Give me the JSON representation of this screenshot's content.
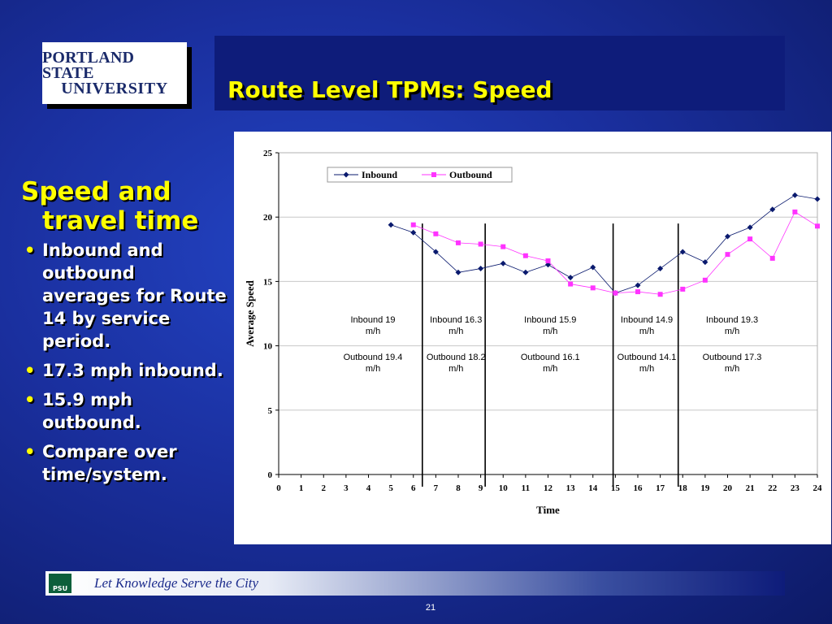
{
  "logo": {
    "line1": "PORTLAND STATE",
    "line2": "UNIVERSITY"
  },
  "title": "Route Level TPMs: Speed",
  "left": {
    "heading": "Speed and travel time",
    "bullets": [
      "Inbound and outbound averages for Route 14 by service period.",
      "17.3 mph inbound.",
      "15.9 mph outbound.",
      "Compare over time/system."
    ]
  },
  "footer": {
    "badge": "PSU",
    "tagline": "Let Knowledge Serve the City",
    "page_number": "21"
  },
  "colors": {
    "inbound": "#0a1a6e",
    "outbound": "#ff33ff",
    "title": "#ffff00"
  },
  "chart_data": {
    "type": "line",
    "xlabel": "Time",
    "ylabel": "Average Speed",
    "x_ticks": [
      0,
      1,
      2,
      3,
      4,
      5,
      6,
      7,
      8,
      9,
      10,
      11,
      12,
      13,
      14,
      15,
      16,
      17,
      18,
      19,
      20,
      21,
      22,
      23,
      24
    ],
    "y_ticks": [
      0,
      5,
      10,
      15,
      20,
      25
    ],
    "xlim": [
      0,
      24
    ],
    "ylim": [
      0,
      25
    ],
    "grid": "horizontal",
    "legend": "top-left",
    "series": [
      {
        "name": "Inbound",
        "marker": "diamond",
        "x": [
          5,
          6,
          7,
          8,
          9,
          10,
          11,
          12,
          13,
          14,
          15,
          16,
          17,
          18,
          19,
          20,
          21,
          22,
          23,
          24
        ],
        "y": [
          19.4,
          18.8,
          17.3,
          15.7,
          16.0,
          16.4,
          15.7,
          16.3,
          15.3,
          16.1,
          14.1,
          14.7,
          16.0,
          17.3,
          16.5,
          18.5,
          19.2,
          20.6,
          21.7,
          21.4
        ]
      },
      {
        "name": "Outbound",
        "marker": "square",
        "x": [
          6,
          7,
          8,
          9,
          10,
          11,
          12,
          13,
          14,
          15,
          16,
          17,
          18,
          19,
          20,
          21,
          22,
          23,
          24
        ],
        "y": [
          19.4,
          18.7,
          18.0,
          17.9,
          17.7,
          17.0,
          16.6,
          14.8,
          14.5,
          14.1,
          14.2,
          14.0,
          14.4,
          15.1,
          17.1,
          18.3,
          16.8,
          20.4,
          19.3
        ]
      }
    ],
    "period_dividers": [
      6.4,
      9.2,
      14.9,
      17.8
    ],
    "annotations": [
      {
        "x": 4.2,
        "inbound": "Inbound 19 m/h",
        "outbound": "Outbound 19.4 m/h"
      },
      {
        "x": 7.9,
        "inbound": "Inbound 16.3 m/h",
        "outbound": "Outbound 18.2 m/h"
      },
      {
        "x": 12.1,
        "inbound": "Inbound 15.9 m/h",
        "outbound": "Outbound 16.1 m/h"
      },
      {
        "x": 16.4,
        "inbound": "Inbound 14.9 m/h",
        "outbound": "Outbound 14.1 m/h"
      },
      {
        "x": 20.2,
        "inbound": "Inbound 19.3 m/h",
        "outbound": "Outbound 17.3 m/h"
      }
    ]
  }
}
